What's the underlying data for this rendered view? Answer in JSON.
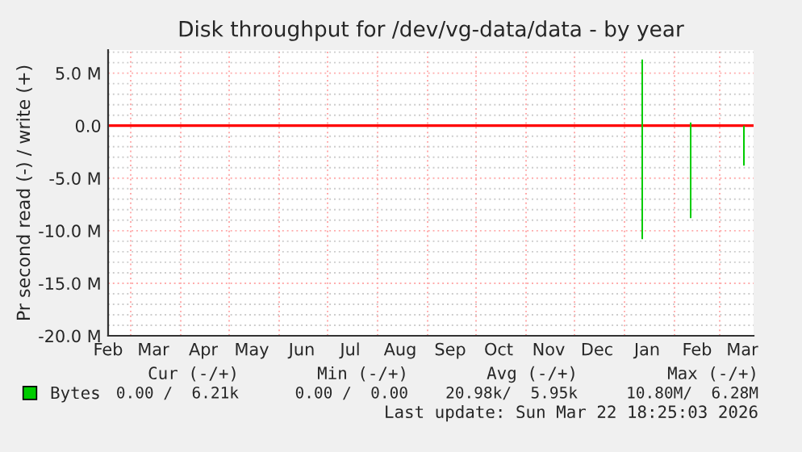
{
  "chart_data": {
    "type": "bar",
    "title": "Disk throughput for /dev/vg-data/data - by year",
    "ylabel": "Pr second read (-) / write (+)",
    "series": [
      {
        "name": "Bytes",
        "color": "#00cc00",
        "x": [
          "2026-01-12",
          "2026-02-11",
          "2026-03-16"
        ],
        "values": [
          -10.8,
          -8.8,
          -3.8
        ]
      },
      {
        "color": "#00cc00",
        "x": [
          "2026-01-12",
          "2026-02-11"
        ],
        "values": [
          6.3,
          0.3
        ]
      }
    ],
    "xlim": [
      "2025-02-15",
      "2026-03-22"
    ],
    "xticks": [
      {
        "value": "2025-02-15",
        "label": "Feb"
      },
      {
        "value": "2025-03-15",
        "label": "Mar"
      },
      {
        "value": "2025-04-15",
        "label": "Apr"
      },
      {
        "value": "2025-05-15",
        "label": "May"
      },
      {
        "value": "2025-06-15",
        "label": "Jun"
      },
      {
        "value": "2025-07-15",
        "label": "Jul"
      },
      {
        "value": "2025-08-15",
        "label": "Aug"
      },
      {
        "value": "2025-09-15",
        "label": "Sep"
      },
      {
        "value": "2025-10-15",
        "label": "Oct"
      },
      {
        "value": "2025-11-15",
        "label": "Nov"
      },
      {
        "value": "2025-12-15",
        "label": "Dec"
      },
      {
        "value": "2026-01-15",
        "label": "Jan"
      },
      {
        "value": "2026-02-15",
        "label": "Feb"
      },
      {
        "value": "2026-03-15",
        "label": "Mar"
      },
      {
        "value": "2025-03-01",
        "label": null
      },
      {
        "value": "2025-04-01",
        "label": null
      },
      {
        "value": "2025-05-01",
        "label": null
      },
      {
        "value": "2025-06-01",
        "label": null
      },
      {
        "value": "2025-07-01",
        "label": null
      },
      {
        "value": "2025-08-01",
        "label": null
      },
      {
        "value": "2025-09-01",
        "label": null
      },
      {
        "value": "2025-10-01",
        "label": null
      },
      {
        "value": "2025-11-01",
        "label": null
      },
      {
        "value": "2025-12-01",
        "label": null
      },
      {
        "value": "2026-01-01",
        "label": null
      },
      {
        "value": "2026-02-01",
        "label": null
      },
      {
        "value": "2026-03-01",
        "label": null
      }
    ],
    "ylim": [
      -20,
      7.2
    ],
    "yticks": [
      {
        "value": 5,
        "label": "5.0 M"
      },
      {
        "value": 0,
        "label": "0.0"
      },
      {
        "value": -5,
        "label": "-5.0 M"
      },
      {
        "value": -10,
        "label": "-10.0 M"
      },
      {
        "value": -15,
        "label": "-15.0 M"
      },
      {
        "value": -20,
        "label": "-20.0 M"
      },
      {
        "value": 7,
        "label": null
      },
      {
        "value": 6,
        "label": null
      },
      {
        "value": 4,
        "label": null
      },
      {
        "value": 3,
        "label": null
      },
      {
        "value": 2,
        "label": null
      },
      {
        "value": 1,
        "label": null
      },
      {
        "value": -1,
        "label": null
      },
      {
        "value": -2,
        "label": null
      },
      {
        "value": -3,
        "label": null
      },
      {
        "value": -4,
        "label": null
      },
      {
        "value": -6,
        "label": null
      },
      {
        "value": -7,
        "label": null
      },
      {
        "value": -8,
        "label": null
      },
      {
        "value": -9,
        "label": null
      },
      {
        "value": -11,
        "label": null
      },
      {
        "value": -12,
        "label": null
      },
      {
        "value": -13,
        "label": null
      },
      {
        "value": -14,
        "label": null
      },
      {
        "value": -16,
        "label": null
      },
      {
        "value": -17,
        "label": null
      },
      {
        "value": -18,
        "label": null
      },
      {
        "value": -19,
        "label": null
      }
    ],
    "ref_lines": [
      {
        "axis": "y",
        "value": 0,
        "color": "#ff0000"
      }
    ],
    "grid": true,
    "legend": "bottom",
    "annotations": [
      "Cur (-/+)",
      "Min (-/+)",
      "Avg (-/+)",
      "Max (-/+)",
      "0.00 /  6.21k",
      "0.00 /  0.00",
      "20.98k/  5.95k",
      "10.80M/  6.28M",
      "Last update: Sun Mar 22 18:25:03 2026"
    ]
  }
}
